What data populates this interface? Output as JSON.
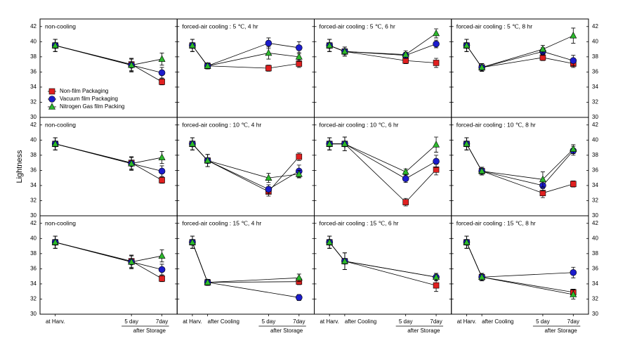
{
  "chart_data": [
    {
      "type": "line",
      "title": "non-cooling",
      "x": [
        0,
        5,
        7
      ],
      "xlim": [
        -1,
        8
      ],
      "ylim": [
        30,
        43
      ],
      "yticks": [
        30,
        32,
        34,
        36,
        38,
        40,
        42
      ],
      "legend": "center-left",
      "series": [
        {
          "name": "Non-film Packaging",
          "color": "#e02020",
          "marker": "square",
          "values": [
            39.5,
            37.0,
            34.7
          ],
          "errors": [
            0.8,
            0.8,
            0.4
          ]
        },
        {
          "name": "Vacuum film Packaging",
          "color": "#1c1ccc",
          "marker": "circle",
          "values": [
            39.5,
            36.9,
            35.9
          ],
          "errors": [
            0.8,
            0.8,
            0.7
          ]
        },
        {
          "name": "Nitrogen Gas film Packing",
          "color": "#2cb82c",
          "marker": "triangle",
          "values": [
            39.5,
            36.9,
            37.7
          ],
          "errors": [
            0.8,
            0.9,
            0.8
          ]
        }
      ]
    },
    {
      "type": "line",
      "title": "forced-air cooling : 5 ℃, 4 hr",
      "x": [
        0,
        1,
        5,
        7
      ],
      "xlim": [
        -1,
        8
      ],
      "ylim": [
        30,
        43
      ],
      "yticks": [
        30,
        32,
        34,
        36,
        38,
        40,
        42
      ],
      "series": [
        {
          "color": "#e02020",
          "marker": "square",
          "values": [
            39.5,
            36.8,
            36.5,
            37.1
          ],
          "errors": [
            0.8,
            0.4,
            0.4,
            0.5
          ]
        },
        {
          "color": "#1c1ccc",
          "marker": "circle",
          "values": [
            39.5,
            36.8,
            39.8,
            39.2
          ],
          "errors": [
            0.8,
            0.4,
            0.7,
            0.8
          ]
        },
        {
          "color": "#2cb82c",
          "marker": "triangle",
          "values": [
            39.5,
            36.8,
            38.5,
            38.0
          ],
          "errors": [
            0.8,
            0.4,
            0.8,
            0.6
          ]
        }
      ]
    },
    {
      "type": "line",
      "title": "forced-air cooling : 5 ℃, 6 hr",
      "x": [
        0,
        1,
        5,
        7
      ],
      "xlim": [
        -1,
        8
      ],
      "ylim": [
        30,
        43
      ],
      "yticks": [
        30,
        32,
        34,
        36,
        38,
        40,
        42
      ],
      "series": [
        {
          "color": "#e02020",
          "marker": "square",
          "values": [
            39.5,
            38.7,
            37.5,
            37.2
          ],
          "errors": [
            0.8,
            0.6,
            0.4,
            0.6
          ]
        },
        {
          "color": "#1c1ccc",
          "marker": "circle",
          "values": [
            39.5,
            38.7,
            38.2,
            39.7
          ],
          "errors": [
            0.8,
            0.6,
            0.4,
            0.5
          ]
        },
        {
          "color": "#2cb82c",
          "marker": "triangle",
          "values": [
            39.5,
            38.7,
            38.3,
            41.1
          ],
          "errors": [
            0.8,
            0.6,
            0.5,
            0.6
          ]
        }
      ]
    },
    {
      "type": "line",
      "title": "forced-air cooling : 5 ℃, 8 hr",
      "x": [
        0,
        1,
        5,
        7
      ],
      "xlim": [
        -1,
        8
      ],
      "ylim": [
        30,
        43
      ],
      "yticks": [
        30,
        32,
        34,
        36,
        38,
        40,
        42
      ],
      "series": [
        {
          "color": "#e02020",
          "marker": "square",
          "values": [
            39.5,
            36.6,
            37.9,
            37.1
          ],
          "errors": [
            0.8,
            0.5,
            0.4,
            0.5
          ]
        },
        {
          "color": "#1c1ccc",
          "marker": "circle",
          "values": [
            39.5,
            36.6,
            38.7,
            37.5
          ],
          "errors": [
            0.8,
            0.5,
            0.5,
            0.7
          ]
        },
        {
          "color": "#2cb82c",
          "marker": "triangle",
          "values": [
            39.5,
            36.6,
            39.0,
            40.8
          ],
          "errors": [
            0.8,
            0.5,
            0.5,
            1.0
          ]
        }
      ]
    },
    {
      "type": "line",
      "title": "non-cooling",
      "x": [
        0,
        5,
        7
      ],
      "xlim": [
        -1,
        8
      ],
      "ylim": [
        30,
        43
      ],
      "yticks": [
        30,
        32,
        34,
        36,
        38,
        40,
        42
      ],
      "ylabel": "Lightness",
      "series": [
        {
          "color": "#e02020",
          "marker": "square",
          "values": [
            39.5,
            37.0,
            34.7
          ],
          "errors": [
            0.8,
            0.8,
            0.4
          ]
        },
        {
          "color": "#1c1ccc",
          "marker": "circle",
          "values": [
            39.5,
            36.9,
            35.9
          ],
          "errors": [
            0.8,
            0.8,
            0.7
          ]
        },
        {
          "color": "#2cb82c",
          "marker": "triangle",
          "values": [
            39.5,
            36.9,
            37.7
          ],
          "errors": [
            0.8,
            0.9,
            0.8
          ]
        }
      ]
    },
    {
      "type": "line",
      "title": "forced-air cooling : 10 ℃, 4 hr",
      "x": [
        0,
        1,
        5,
        7
      ],
      "xlim": [
        -1,
        8
      ],
      "ylim": [
        30,
        43
      ],
      "yticks": [
        30,
        32,
        34,
        36,
        38,
        40,
        42
      ],
      "series": [
        {
          "color": "#e02020",
          "marker": "square",
          "values": [
            39.5,
            37.3,
            33.2,
            37.8
          ],
          "errors": [
            0.8,
            0.8,
            0.6,
            0.5
          ]
        },
        {
          "color": "#1c1ccc",
          "marker": "circle",
          "values": [
            39.5,
            37.3,
            33.5,
            35.9
          ],
          "errors": [
            0.8,
            0.8,
            0.6,
            0.8
          ]
        },
        {
          "color": "#2cb82c",
          "marker": "triangle",
          "values": [
            39.5,
            37.3,
            35.0,
            35.5
          ],
          "errors": [
            0.8,
            0.8,
            0.6,
            0.5
          ]
        }
      ]
    },
    {
      "type": "line",
      "title": "forced-air cooling : 10 ℃, 6 hr",
      "x": [
        0,
        1,
        5,
        7
      ],
      "xlim": [
        -1,
        8
      ],
      "ylim": [
        30,
        43
      ],
      "yticks": [
        30,
        32,
        34,
        36,
        38,
        40,
        42
      ],
      "series": [
        {
          "color": "#e02020",
          "marker": "square",
          "values": [
            39.5,
            39.5,
            31.8,
            36.1
          ],
          "errors": [
            0.8,
            0.9,
            0.5,
            0.7
          ]
        },
        {
          "color": "#1c1ccc",
          "marker": "circle",
          "values": [
            39.5,
            39.5,
            34.9,
            37.2
          ],
          "errors": [
            0.8,
            0.9,
            0.5,
            0.8
          ]
        },
        {
          "color": "#2cb82c",
          "marker": "triangle",
          "values": [
            39.5,
            39.5,
            35.8,
            39.4
          ],
          "errors": [
            0.8,
            0.9,
            0.4,
            1.0
          ]
        }
      ]
    },
    {
      "type": "line",
      "title": "forced-air cooling : 10 ℃, 8 hr",
      "x": [
        0,
        1,
        5,
        7
      ],
      "xlim": [
        -1,
        8
      ],
      "ylim": [
        30,
        43
      ],
      "yticks": [
        30,
        32,
        34,
        36,
        38,
        40,
        42
      ],
      "series": [
        {
          "color": "#e02020",
          "marker": "square",
          "values": [
            39.5,
            35.9,
            33.0,
            34.2
          ],
          "errors": [
            0.8,
            0.5,
            0.6,
            0.4
          ]
        },
        {
          "color": "#1c1ccc",
          "marker": "circle",
          "values": [
            39.5,
            35.9,
            34.0,
            38.6
          ],
          "errors": [
            0.8,
            0.5,
            0.7,
            0.6
          ]
        },
        {
          "color": "#2cb82c",
          "marker": "triangle",
          "values": [
            39.5,
            35.9,
            34.8,
            38.8
          ],
          "errors": [
            0.8,
            0.5,
            1.0,
            0.6
          ]
        }
      ]
    },
    {
      "type": "line",
      "title": "non-cooling",
      "x": [
        0,
        5,
        7
      ],
      "xlim": [
        -1,
        8
      ],
      "ylim": [
        30,
        43
      ],
      "yticks": [
        30,
        32,
        34,
        36,
        38,
        40,
        42
      ],
      "xticks": [
        {
          "value": 0,
          "label": "at Harv."
        },
        {
          "value": 5,
          "label": "5 day"
        },
        {
          "value": 7,
          "label": "7day"
        }
      ],
      "xgroup": "after Storage",
      "series": [
        {
          "color": "#e02020",
          "marker": "square",
          "values": [
            39.5,
            37.0,
            34.7
          ],
          "errors": [
            0.8,
            0.8,
            0.4
          ]
        },
        {
          "color": "#1c1ccc",
          "marker": "circle",
          "values": [
            39.5,
            36.9,
            35.9
          ],
          "errors": [
            0.8,
            0.8,
            0.7
          ]
        },
        {
          "color": "#2cb82c",
          "marker": "triangle",
          "values": [
            39.5,
            36.9,
            37.7
          ],
          "errors": [
            0.8,
            0.9,
            0.8
          ]
        }
      ]
    },
    {
      "type": "line",
      "title": "forced-air cooling : 15 ℃, 4 hr",
      "x": [
        0,
        1,
        7
      ],
      "xlim": [
        -1,
        8
      ],
      "ylim": [
        30,
        43
      ],
      "yticks": [
        30,
        32,
        34,
        36,
        38,
        40,
        42
      ],
      "xticks": [
        {
          "value": 0,
          "label": "at Harv."
        },
        {
          "value": 1,
          "label": "after Cooling"
        },
        {
          "value": 5,
          "label": "5 day"
        },
        {
          "value": 7,
          "label": "7day"
        }
      ],
      "xgroup": "after Storage",
      "series": [
        {
          "color": "#e02020",
          "marker": "square",
          "values": [
            39.5,
            34.2,
            34.3
          ],
          "errors": [
            0.8,
            0.4,
            0.4
          ]
        },
        {
          "color": "#1c1ccc",
          "marker": "circle",
          "values": [
            39.5,
            34.2,
            32.2
          ],
          "errors": [
            0.8,
            0.4,
            0.4
          ]
        },
        {
          "color": "#2cb82c",
          "marker": "triangle",
          "values": [
            39.5,
            34.2,
            34.8
          ],
          "errors": [
            0.8,
            0.4,
            0.5
          ]
        }
      ]
    },
    {
      "type": "line",
      "title": "forced-air cooling : 15 ℃, 6 hr",
      "x": [
        0,
        1,
        7
      ],
      "xlim": [
        -1,
        8
      ],
      "ylim": [
        30,
        43
      ],
      "yticks": [
        30,
        32,
        34,
        36,
        38,
        40,
        42
      ],
      "xticks": [
        {
          "value": 0,
          "label": "at Harv."
        },
        {
          "value": 1,
          "label": "after Cooling"
        },
        {
          "value": 5,
          "label": "5 day"
        },
        {
          "value": 7,
          "label": "7day"
        }
      ],
      "xgroup": "after Storage",
      "series": [
        {
          "color": "#e02020",
          "marker": "square",
          "values": [
            39.5,
            37.0,
            33.8
          ],
          "errors": [
            0.8,
            1.1,
            0.8
          ]
        },
        {
          "color": "#1c1ccc",
          "marker": "circle",
          "values": [
            39.5,
            37.0,
            34.9
          ],
          "errors": [
            0.8,
            1.1,
            0.5
          ]
        },
        {
          "color": "#2cb82c",
          "marker": "triangle",
          "values": [
            39.5,
            37.0,
            34.9
          ],
          "errors": [
            0.8,
            1.1,
            0.5
          ]
        }
      ]
    },
    {
      "type": "line",
      "title": "forced-air cooling : 15 ℃, 8 hr",
      "x": [
        0,
        1,
        7
      ],
      "xlim": [
        -1,
        8
      ],
      "ylim": [
        30,
        43
      ],
      "yticks": [
        30,
        32,
        34,
        36,
        38,
        40,
        42
      ],
      "xticks": [
        {
          "value": 0,
          "label": "at Harv."
        },
        {
          "value": 1,
          "label": "after Cooling"
        },
        {
          "value": 5,
          "label": "5 day"
        },
        {
          "value": 7,
          "label": "7day"
        }
      ],
      "xgroup": "after Storage",
      "series": [
        {
          "color": "#e02020",
          "marker": "square",
          "values": [
            39.5,
            34.9,
            32.9
          ],
          "errors": [
            0.8,
            0.5,
            0.4
          ]
        },
        {
          "color": "#1c1ccc",
          "marker": "circle",
          "values": [
            39.5,
            34.9,
            35.5
          ],
          "errors": [
            0.8,
            0.5,
            0.7
          ]
        },
        {
          "color": "#2cb82c",
          "marker": "triangle",
          "values": [
            39.5,
            34.9,
            32.6
          ],
          "errors": [
            0.8,
            0.5,
            0.6
          ]
        }
      ]
    }
  ]
}
